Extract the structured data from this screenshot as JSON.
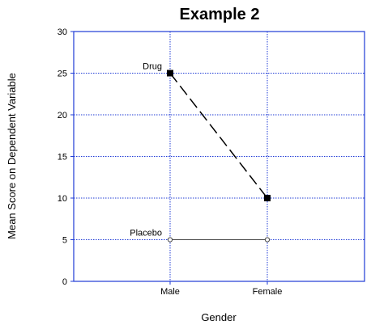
{
  "chart_data": {
    "type": "line",
    "title": "Example 2",
    "xlabel": "Gender",
    "ylabel": "Mean Score on Dependent Variable",
    "categories": [
      "Male",
      "Female"
    ],
    "ylim": [
      0,
      30
    ],
    "yticks": [
      0,
      5,
      10,
      15,
      20,
      25,
      30
    ],
    "grid": true,
    "grid_color": "#1f3bd6",
    "series": [
      {
        "name": "Drug",
        "values": [
          25,
          10
        ],
        "line_style": "dashed",
        "marker": "filled-square",
        "color": "#000000"
      },
      {
        "name": "Placebo",
        "values": [
          5,
          5
        ],
        "line_style": "solid",
        "marker": "open-circle",
        "color": "#444444"
      }
    ]
  }
}
